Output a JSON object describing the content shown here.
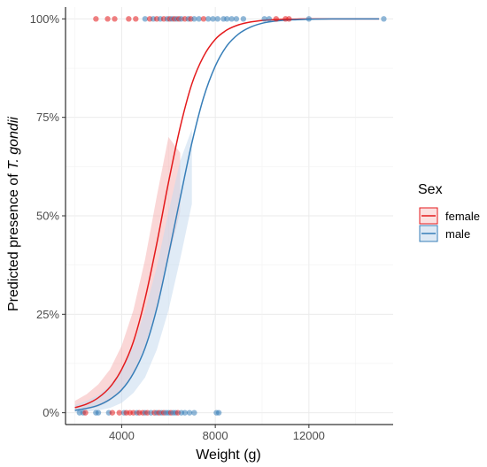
{
  "chart_data": {
    "type": "line",
    "xlabel": "Weight (g)",
    "ylabel_prefix": "Predicted presence of ",
    "ylabel_italic": "T. gondii",
    "xlim": [
      1600,
      15600
    ],
    "ylim": [
      -0.03,
      1.03
    ],
    "x_ticks": [
      4000,
      8000,
      12000
    ],
    "x_tick_labels": [
      "4000",
      "8000",
      "12000"
    ],
    "y_ticks": [
      0,
      0.25,
      0.5,
      0.75,
      1
    ],
    "y_tick_labels": [
      "0%",
      "25%",
      "50%",
      "75%",
      "100%"
    ],
    "grid": true,
    "legend": {
      "title": "Sex",
      "position": "right"
    },
    "series": [
      {
        "name": "female",
        "color": "#e41a1c",
        "fill": "#f4a6a6",
        "x": [
          2000,
          2500,
          3000,
          3500,
          4000,
          4500,
          5000,
          5500,
          6000,
          6500,
          7000,
          7500,
          8000,
          8500,
          9000,
          9500,
          10000,
          10500,
          11000,
          11500,
          12000,
          13000,
          14000,
          15000
        ],
        "values": [
          0.013,
          0.022,
          0.038,
          0.065,
          0.11,
          0.18,
          0.29,
          0.43,
          0.585,
          0.725,
          0.835,
          0.905,
          0.948,
          0.972,
          0.985,
          0.992,
          0.996,
          0.998,
          0.999,
          0.9995,
          1.0,
          1.0,
          1.0,
          1.0
        ],
        "ci_x": [
          2000,
          2500,
          3000,
          3500,
          4000,
          4500,
          5000,
          5500,
          6000,
          6500
        ],
        "ci_lower": [
          0.004,
          0.008,
          0.015,
          0.03,
          0.055,
          0.1,
          0.17,
          0.27,
          0.39,
          0.51
        ],
        "ci_upper": [
          0.03,
          0.047,
          0.072,
          0.11,
          0.17,
          0.26,
          0.39,
          0.55,
          0.7,
          0.66
        ]
      },
      {
        "name": "male",
        "color": "#377eb8",
        "fill": "#c7dbef",
        "x": [
          2000,
          2500,
          3000,
          3500,
          4000,
          4500,
          5000,
          5500,
          6000,
          6500,
          7000,
          7500,
          8000,
          8500,
          9000,
          9500,
          10000,
          10500,
          11000,
          11500,
          12000,
          13000,
          14000,
          15000
        ],
        "values": [
          0.006,
          0.011,
          0.019,
          0.034,
          0.058,
          0.1,
          0.165,
          0.265,
          0.4,
          0.545,
          0.685,
          0.8,
          0.88,
          0.932,
          0.962,
          0.979,
          0.989,
          0.994,
          0.997,
          0.998,
          0.999,
          1.0,
          1.0,
          1.0
        ],
        "ci_x": [
          2000,
          2500,
          3000,
          3500,
          4000,
          4500,
          5000,
          5500,
          6000,
          6500,
          7000
        ],
        "ci_lower": [
          0.001,
          0.003,
          0.006,
          0.012,
          0.025,
          0.05,
          0.09,
          0.16,
          0.26,
          0.39,
          0.53
        ],
        "ci_upper": [
          0.02,
          0.03,
          0.045,
          0.07,
          0.11,
          0.17,
          0.26,
          0.37,
          0.51,
          0.64,
          0.72
        ]
      }
    ],
    "points": [
      {
        "x": 2200,
        "y": 0,
        "sex": "male"
      },
      {
        "x": 2350,
        "y": 0,
        "sex": "male"
      },
      {
        "x": 2450,
        "y": 0,
        "sex": "female"
      },
      {
        "x": 2900,
        "y": 0,
        "sex": "male"
      },
      {
        "x": 3000,
        "y": 0,
        "sex": "male"
      },
      {
        "x": 3450,
        "y": 0,
        "sex": "male"
      },
      {
        "x": 3600,
        "y": 0,
        "sex": "female"
      },
      {
        "x": 3900,
        "y": 0,
        "sex": "female"
      },
      {
        "x": 4100,
        "y": 0,
        "sex": "male"
      },
      {
        "x": 4200,
        "y": 0,
        "sex": "female"
      },
      {
        "x": 4350,
        "y": 0,
        "sex": "female"
      },
      {
        "x": 4500,
        "y": 0,
        "sex": "female"
      },
      {
        "x": 4650,
        "y": 0,
        "sex": "male"
      },
      {
        "x": 4750,
        "y": 0,
        "sex": "female"
      },
      {
        "x": 4900,
        "y": 0,
        "sex": "female"
      },
      {
        "x": 5000,
        "y": 0,
        "sex": "male"
      },
      {
        "x": 5100,
        "y": 0,
        "sex": "female"
      },
      {
        "x": 5250,
        "y": 0,
        "sex": "male"
      },
      {
        "x": 5400,
        "y": 0,
        "sex": "female"
      },
      {
        "x": 5500,
        "y": 0,
        "sex": "male"
      },
      {
        "x": 5600,
        "y": 0,
        "sex": "female"
      },
      {
        "x": 5700,
        "y": 0,
        "sex": "male"
      },
      {
        "x": 5800,
        "y": 0,
        "sex": "female"
      },
      {
        "x": 5900,
        "y": 0,
        "sex": "male"
      },
      {
        "x": 6000,
        "y": 0,
        "sex": "male"
      },
      {
        "x": 6100,
        "y": 0,
        "sex": "female"
      },
      {
        "x": 6200,
        "y": 0,
        "sex": "male"
      },
      {
        "x": 6300,
        "y": 0,
        "sex": "male"
      },
      {
        "x": 6400,
        "y": 0,
        "sex": "female"
      },
      {
        "x": 6550,
        "y": 0,
        "sex": "male"
      },
      {
        "x": 6700,
        "y": 0,
        "sex": "male"
      },
      {
        "x": 6900,
        "y": 0,
        "sex": "male"
      },
      {
        "x": 7100,
        "y": 0,
        "sex": "male"
      },
      {
        "x": 8050,
        "y": 0,
        "sex": "male"
      },
      {
        "x": 8150,
        "y": 0,
        "sex": "male"
      },
      {
        "x": 2900,
        "y": 1,
        "sex": "female"
      },
      {
        "x": 3400,
        "y": 1,
        "sex": "female"
      },
      {
        "x": 3700,
        "y": 1,
        "sex": "female"
      },
      {
        "x": 4300,
        "y": 1,
        "sex": "female"
      },
      {
        "x": 4600,
        "y": 1,
        "sex": "female"
      },
      {
        "x": 5000,
        "y": 1,
        "sex": "male"
      },
      {
        "x": 5200,
        "y": 1,
        "sex": "female"
      },
      {
        "x": 5350,
        "y": 1,
        "sex": "male"
      },
      {
        "x": 5500,
        "y": 1,
        "sex": "female"
      },
      {
        "x": 5650,
        "y": 1,
        "sex": "male"
      },
      {
        "x": 5800,
        "y": 1,
        "sex": "female"
      },
      {
        "x": 5950,
        "y": 1,
        "sex": "male"
      },
      {
        "x": 6050,
        "y": 1,
        "sex": "female"
      },
      {
        "x": 6150,
        "y": 1,
        "sex": "male"
      },
      {
        "x": 6250,
        "y": 1,
        "sex": "female"
      },
      {
        "x": 6350,
        "y": 1,
        "sex": "male"
      },
      {
        "x": 6450,
        "y": 1,
        "sex": "female"
      },
      {
        "x": 6550,
        "y": 1,
        "sex": "male"
      },
      {
        "x": 6700,
        "y": 1,
        "sex": "female"
      },
      {
        "x": 6850,
        "y": 1,
        "sex": "male"
      },
      {
        "x": 6950,
        "y": 1,
        "sex": "female"
      },
      {
        "x": 7100,
        "y": 1,
        "sex": "male"
      },
      {
        "x": 7300,
        "y": 1,
        "sex": "male"
      },
      {
        "x": 7500,
        "y": 1,
        "sex": "female"
      },
      {
        "x": 7700,
        "y": 1,
        "sex": "male"
      },
      {
        "x": 7900,
        "y": 1,
        "sex": "male"
      },
      {
        "x": 8100,
        "y": 1,
        "sex": "male"
      },
      {
        "x": 8350,
        "y": 1,
        "sex": "male"
      },
      {
        "x": 8500,
        "y": 1,
        "sex": "male"
      },
      {
        "x": 8700,
        "y": 1,
        "sex": "male"
      },
      {
        "x": 8900,
        "y": 1,
        "sex": "male"
      },
      {
        "x": 9200,
        "y": 1,
        "sex": "male"
      },
      {
        "x": 10100,
        "y": 1,
        "sex": "male"
      },
      {
        "x": 10300,
        "y": 1,
        "sex": "male"
      },
      {
        "x": 10600,
        "y": 1,
        "sex": "female"
      },
      {
        "x": 11000,
        "y": 1,
        "sex": "female"
      },
      {
        "x": 11150,
        "y": 1,
        "sex": "female"
      },
      {
        "x": 12000,
        "y": 1,
        "sex": "male"
      },
      {
        "x": 15200,
        "y": 1,
        "sex": "male"
      }
    ]
  }
}
